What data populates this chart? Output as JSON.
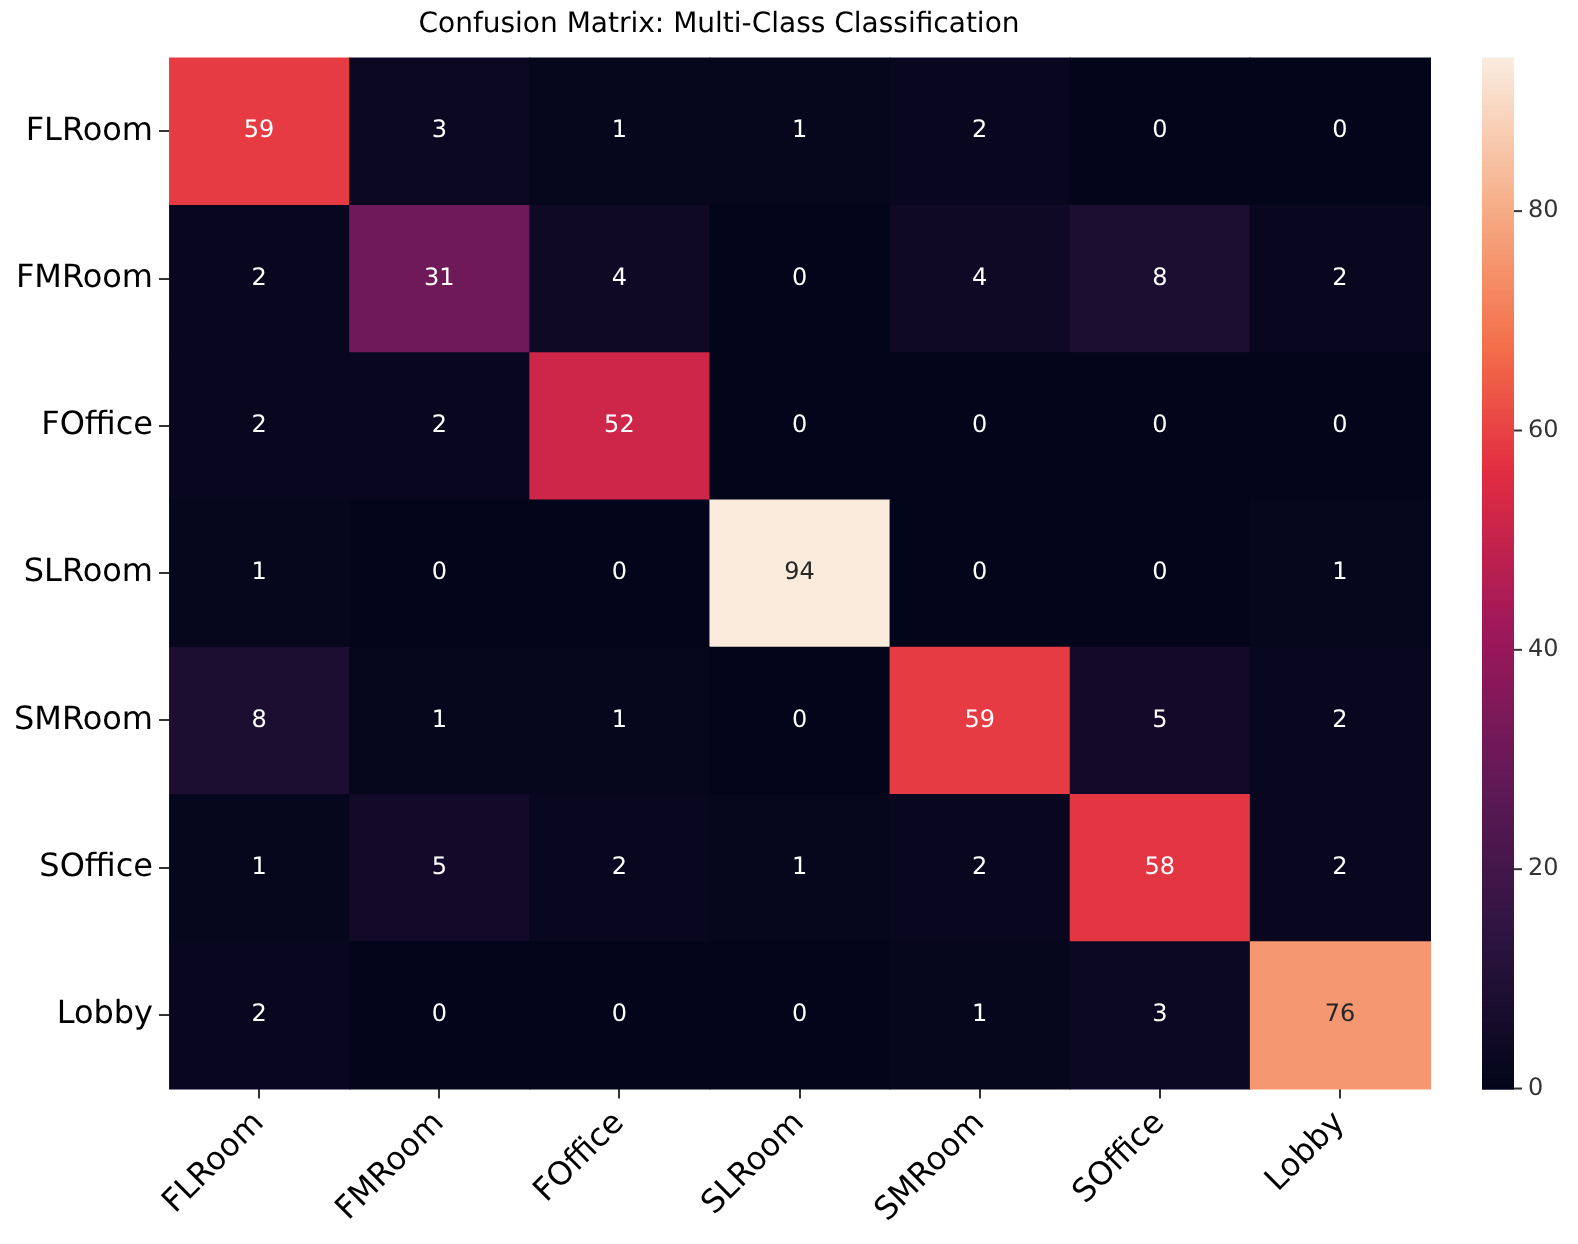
{
  "chart_data": {
    "type": "heatmap",
    "title": "Confusion Matrix: Multi-Class Classification",
    "categories": [
      "FLRoom",
      "FMRoom",
      "FOffice",
      "SLRoom",
      "SMRoom",
      "SOffice",
      "Lobby"
    ],
    "y_categories": [
      "FLRoom",
      "FMRoom",
      "FOffice",
      "SLRoom",
      "SMRoom",
      "SOffice",
      "Lobby"
    ],
    "cells": [
      [
        59,
        3,
        1,
        1,
        2,
        0,
        0
      ],
      [
        2,
        31,
        4,
        0,
        4,
        8,
        2
      ],
      [
        2,
        2,
        52,
        0,
        0,
        0,
        0
      ],
      [
        1,
        0,
        0,
        94,
        0,
        0,
        1
      ],
      [
        8,
        1,
        1,
        0,
        59,
        5,
        2
      ],
      [
        1,
        5,
        2,
        1,
        2,
        58,
        2
      ],
      [
        2,
        0,
        0,
        0,
        1,
        3,
        76
      ]
    ],
    "clim": [
      0,
      94
    ],
    "cticks": [
      0,
      20,
      40,
      60,
      80
    ],
    "data_labels": true
  }
}
